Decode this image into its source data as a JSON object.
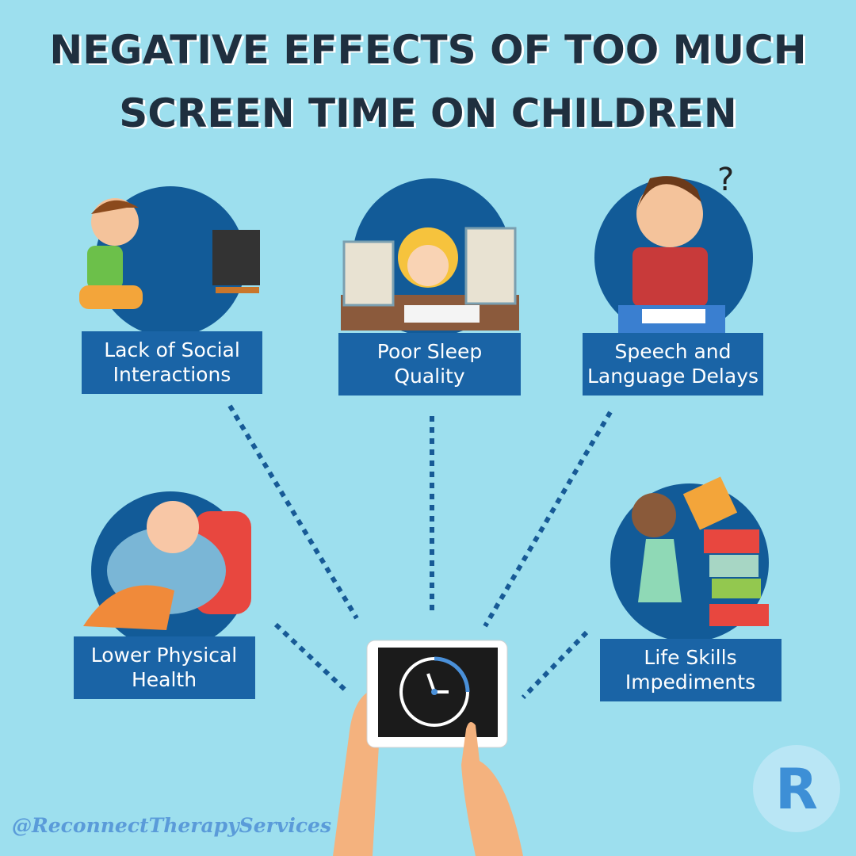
{
  "header": {
    "title": [
      "NEGATIVE EFFECTS OF TOO MUCH",
      "SCREEN TIME ON CHILDREN"
    ]
  },
  "effects": [
    {
      "label": [
        "Lack of Social",
        "Interactions"
      ]
    },
    {
      "label": [
        "Poor Sleep",
        "Quality"
      ]
    },
    {
      "label": [
        "Speech and",
        "Language Delays"
      ]
    },
    {
      "label": [
        "Lower Physical",
        "Health"
      ]
    },
    {
      "label": [
        "Life Skills",
        "Impediments"
      ]
    }
  ],
  "illustration": {
    "question_mark": "?"
  },
  "footer": {
    "handle": "@ReconnectTherapyServices",
    "logo": "R"
  }
}
